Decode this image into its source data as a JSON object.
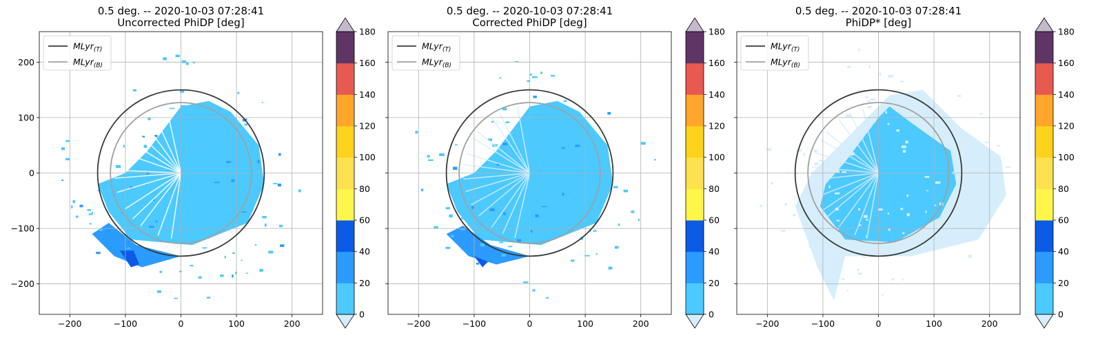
{
  "chart_data": [
    {
      "type": "heatmap",
      "title": "0.5 deg. -- 2020-10-03 07:28:41",
      "subtitle": "Uncorrected PhiDP [deg]",
      "xlim": [
        -255,
        255
      ],
      "ylim": [
        -255,
        255
      ],
      "xticks": [
        -200,
        -100,
        0,
        100,
        200
      ],
      "yticks": [
        -200,
        -100,
        0,
        100,
        200
      ],
      "grid": true,
      "legend_position": "top-left",
      "show_y_tick_labels": true,
      "legend": [
        {
          "label": "MLyr",
          "sub": "(T)",
          "color": "#3a3a3a",
          "radius": 150
        },
        {
          "label": "MLyr",
          "sub": "(B)",
          "color": "#a0a0a0",
          "radius": 127
        }
      ],
      "colorbar": {
        "ticks": [
          0,
          20,
          40,
          60,
          80,
          100,
          120,
          140,
          160,
          180
        ],
        "colors": [
          "#4cc9ff",
          "#2b9bff",
          "#0b5be6",
          "#fff64a",
          "#ffe04f",
          "#ffd21c",
          "#ffa62b",
          "#e85a4f",
          "#5e3565"
        ],
        "under_color": "#d6eefb",
        "over_color": "#c4b8cf"
      }
    },
    {
      "type": "heatmap",
      "title": "0.5 deg. -- 2020-10-03 07:28:41",
      "subtitle": "Corrected PhiDP [deg]",
      "xlim": [
        -255,
        255
      ],
      "ylim": [
        -255,
        255
      ],
      "xticks": [
        -200,
        -100,
        0,
        100,
        200
      ],
      "yticks": [
        -200,
        -100,
        0,
        100,
        200
      ],
      "grid": true,
      "legend_position": "top-left",
      "show_y_tick_labels": false,
      "legend": [
        {
          "label": "MLyr",
          "sub": "(T)",
          "color": "#3a3a3a",
          "radius": 150
        },
        {
          "label": "MLyr",
          "sub": "(B)",
          "color": "#a0a0a0",
          "radius": 127
        }
      ],
      "colorbar": {
        "ticks": [
          0,
          20,
          40,
          60,
          80,
          100,
          120,
          140,
          160,
          180
        ],
        "colors": [
          "#4cc9ff",
          "#2b9bff",
          "#0b5be6",
          "#fff64a",
          "#ffe04f",
          "#ffd21c",
          "#ffa62b",
          "#e85a4f",
          "#5e3565"
        ],
        "under_color": "#d6eefb",
        "over_color": "#c4b8cf"
      }
    },
    {
      "type": "heatmap",
      "title": "0.5 deg. -- 2020-10-03 07:28:41",
      "subtitle": "PhiDP* [deg]",
      "xlim": [
        -255,
        255
      ],
      "ylim": [
        -255,
        255
      ],
      "xticks": [
        -200,
        -100,
        0,
        100,
        200
      ],
      "yticks": [
        -200,
        -100,
        0,
        100,
        200
      ],
      "grid": true,
      "legend_position": "top-left",
      "show_y_tick_labels": false,
      "legend": [
        {
          "label": "MLyr",
          "sub": "(T)",
          "color": "#3a3a3a",
          "radius": 150
        },
        {
          "label": "MLyr",
          "sub": "(B)",
          "color": "#a0a0a0",
          "radius": 127
        }
      ],
      "colorbar": {
        "ticks": [
          0,
          20,
          40,
          60,
          80,
          100,
          120,
          140,
          160,
          180
        ],
        "colors": [
          "#4cc9ff",
          "#2b9bff",
          "#0b5be6",
          "#fff64a",
          "#ffe04f",
          "#ffd21c",
          "#ffa62b",
          "#e85a4f",
          "#5e3565"
        ],
        "under_color": "#d6eefb",
        "over_color": "#c4b8cf"
      }
    }
  ]
}
